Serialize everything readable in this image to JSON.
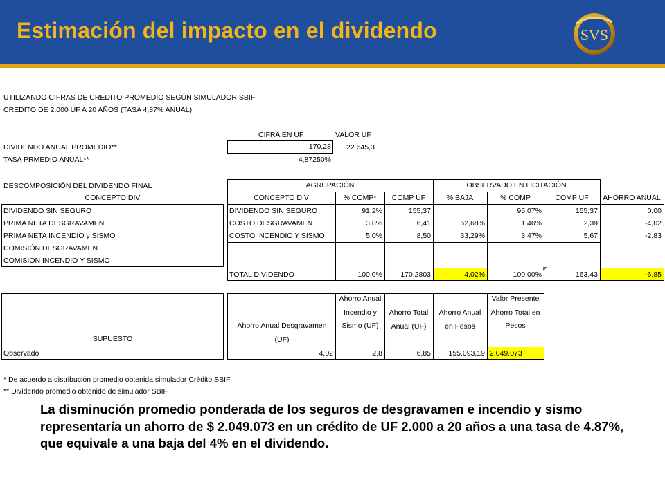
{
  "header": {
    "title": "Estimación del impacto en el dividendo",
    "logo_text": "SVS"
  },
  "intro": {
    "line1": "UTILIZANDO CIFRAS DE CREDITO PROMEDIO SEGÚN SIMULADOR SBIF",
    "line2": "CREDITO DE 2.000 UF A 20 AÑOS (TASA 4,87% ANUAL)"
  },
  "summary": {
    "col_cifra": "CIFRA EN UF",
    "col_valor": "VALOR UF",
    "dividendo_label": "DIVIDENDO ANUAL PROMEDIO**",
    "dividendo_value": "170,28",
    "valor_uf": "22.645,3",
    "tasa_label": "TASA PRMEDIO ANUAL**",
    "tasa_value": "4,87250%"
  },
  "decomp": {
    "title": "DESCOMPOSICIÓN DEL DIVIDENDO FINAL",
    "group_agrupacion": "AGRUPACIÓN",
    "group_observado": "OBSERVADO EN LICITACIÓN",
    "headers": [
      "CONCEPTO DIV",
      "CONCEPTO DIV",
      "% COMP*",
      "COMP UF",
      "% BAJA",
      "% COMP",
      "COMP UF",
      "AHORRO ANUAL"
    ],
    "left_items": [
      "DIVIDENDO SIN SEGURO",
      "PRIMA NETA DESGRAVAMEN",
      "PRIMA NETA INCENDIO y SISMO",
      "COMISIÓN DESGRAVAMEN",
      "COMISIÓN INCENDIO Y SISMO"
    ],
    "rows": [
      {
        "concepto": "DIVIDENDO SIN SEGURO",
        "pct_comp": "91,2%",
        "comp_uf": "155,37",
        "pct_baja": "",
        "pct_comp2": "95,07%",
        "comp_uf2": "155,37",
        "ahorro": "0,00"
      },
      {
        "concepto": "COSTO DESGRAVAMEN",
        "pct_comp": "3,8%",
        "comp_uf": "6,41",
        "pct_baja": "62,68%",
        "pct_comp2": "1,46%",
        "comp_uf2": "2,39",
        "ahorro": "-4,02"
      },
      {
        "concepto": "COSTO INCENDIO Y SISMO",
        "pct_comp": "5,0%",
        "comp_uf": "8,50",
        "pct_baja": "33,29%",
        "pct_comp2": "3,47%",
        "comp_uf2": "5,67",
        "ahorro": "-2,83"
      }
    ],
    "total": {
      "concepto": "TOTAL DIVIDENDO",
      "pct_comp": "100,0%",
      "comp_uf": "170,2803",
      "pct_baja": "4,02%",
      "pct_comp2": "100,00%",
      "comp_uf2": "163,43",
      "ahorro": "-6,85"
    }
  },
  "savings": {
    "supuesto_header": "SUPUESTO",
    "headers": [
      "Ahorro Anual Desgravamen (UF)",
      "Ahorro Anual Incendio y Sismo (UF)",
      "Ahorro Total Anual (UF)",
      "Ahorro Anual en Pesos",
      "Valor Presente Ahorro Total en Pesos"
    ],
    "row_label": "Observado",
    "values": [
      "4,02",
      "2,8",
      "6,85",
      "155.093,19",
      "2.049.073"
    ]
  },
  "footnotes": {
    "note1": "* De acuerdo a distribución promedio obtenida simulador Crédito SBIF",
    "note2": "** Dividendo promedio obtenido de simulador SBIF"
  },
  "conclusion": "La disminución promedio ponderada de los seguros de desgravamen e incendio y sismo representaría un ahorro de $ 2.049.073 en un crédito de UF 2.000 a 20 años a una tasa de 4.87%, que equivale a una baja del 4% en el dividendo.",
  "colors": {
    "header_bg": "#1f4e9c",
    "title_color": "#f2b31b",
    "accent_stripe": "#e8a317",
    "highlight": "#ffff00"
  }
}
